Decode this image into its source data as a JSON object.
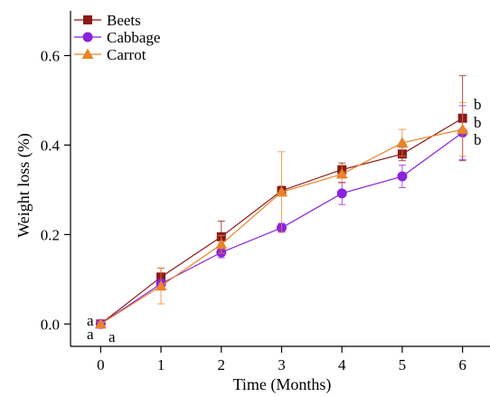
{
  "chart_data": {
    "type": "line",
    "xlabel": "Time (Months)",
    "ylabel": "Weight loss (%)",
    "x": [
      0,
      1,
      2,
      3,
      4,
      5,
      6
    ],
    "xticks": [
      "0",
      "1",
      "2",
      "3",
      "4",
      "5",
      "6"
    ],
    "yticks": [
      "0.0",
      "0.2",
      "0.4",
      "0.6"
    ],
    "xlim": [
      -0.5,
      6.5
    ],
    "ylim": [
      -0.05,
      0.7
    ],
    "grid": false,
    "legend_position": "top-left",
    "series": [
      {
        "name": "Beets",
        "color": "#8b1a1a",
        "marker": "square",
        "values": [
          0.0,
          0.105,
          0.195,
          0.298,
          0.345,
          0.38,
          0.46
        ],
        "errors": [
          0.005,
          0.02,
          0.035,
          0.01,
          0.015,
          0.015,
          0.095
        ]
      },
      {
        "name": "Cabbage",
        "color": "#8b22e0",
        "marker": "circle",
        "values": [
          0.0,
          0.09,
          0.16,
          0.215,
          0.292,
          0.33,
          0.428
        ],
        "errors": [
          0.004,
          0.01,
          0.012,
          0.01,
          0.025,
          0.025,
          0.06
        ]
      },
      {
        "name": "Carrot",
        "color": "#e8842a",
        "marker": "triangle",
        "values": [
          0.0,
          0.085,
          0.178,
          0.295,
          0.335,
          0.405,
          0.435
        ],
        "errors": [
          0.004,
          0.04,
          0.02,
          0.09,
          0.02,
          0.03,
          0.06
        ]
      }
    ],
    "annotations": [
      {
        "text": "a",
        "series": "Carrot",
        "color": "#e8842a"
      },
      {
        "text": "a",
        "series": "Beets",
        "color": "#8b1a1a"
      },
      {
        "text": "a",
        "series": "Cabbage",
        "color": "#8b22e0"
      },
      {
        "text": "b",
        "series": "Beets",
        "color": "#8b1a1a"
      },
      {
        "text": "b",
        "series": "Carrot",
        "color": "#e8842a"
      },
      {
        "text": "b",
        "series": "Cabbage",
        "color": "#8b22e0"
      }
    ]
  }
}
